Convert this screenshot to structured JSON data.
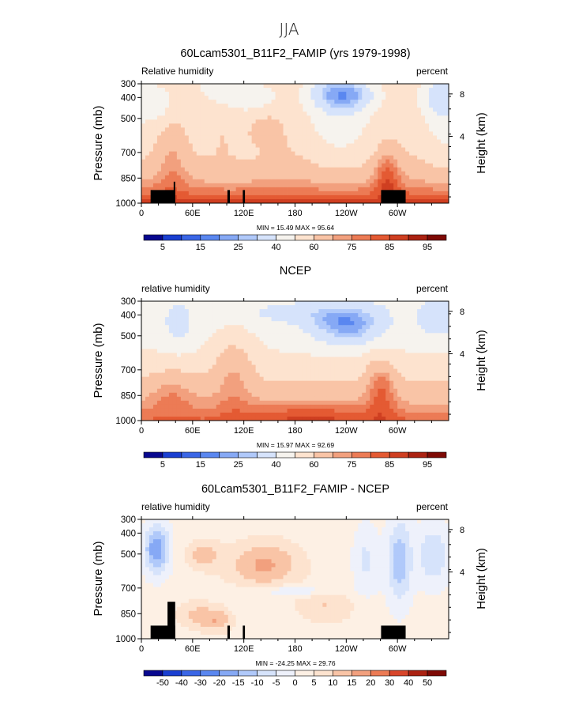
{
  "figure": {
    "suptitle": "JJA"
  },
  "chart_data": [
    {
      "type": "heatmap",
      "title": "60Lcam5301_B11F2_FAMIP (yrs 1979-1998)",
      "left_label": "Relative humidity",
      "right_label": "percent",
      "ylabel": "Pressure (mb)",
      "ylabel_right": "Height (km)",
      "x_ticks": [
        "0",
        "60E",
        "120E",
        "180",
        "120W",
        "60W"
      ],
      "y_ticks": [
        "300",
        "400",
        "500",
        "700",
        "850",
        "1000"
      ],
      "y_ticks_right": [
        "8",
        "4"
      ],
      "stats": "MIN =   15.49   MAX =   95.64",
      "colorbar_labels": [
        "5",
        "15",
        "25",
        "40",
        "60",
        "75",
        "85",
        "95"
      ],
      "levels": [
        5,
        10,
        15,
        20,
        25,
        30,
        40,
        50,
        60,
        70,
        75,
        80,
        85,
        90,
        95
      ],
      "colors": [
        "#08088f",
        "#1a3fd1",
        "#3a66e6",
        "#5a87f0",
        "#86a9f5",
        "#b0c9fa",
        "#d6e3fb",
        "#f6f3ee",
        "#fde3cf",
        "#f9c4a6",
        "#f2a07e",
        "#ec7b55",
        "#e45a33",
        "#cf3f21",
        "#ab2212",
        "#7e0a05"
      ],
      "landmask": [
        [
          0.03,
          0.11,
          0.0
        ],
        [
          0.105,
          0.11,
          0.07
        ],
        [
          0.28,
          0.288,
          0.0
        ],
        [
          0.33,
          0.337,
          0.0
        ],
        [
          0.78,
          0.86,
          0.0
        ]
      ]
    },
    {
      "type": "heatmap",
      "title": "NCEP",
      "left_label": "relative humidity",
      "right_label": "percent",
      "ylabel": "Pressure (mb)",
      "ylabel_right": "Height (km)",
      "x_ticks": [
        "0",
        "60E",
        "120E",
        "180",
        "120W",
        "60W"
      ],
      "y_ticks": [
        "300",
        "400",
        "500",
        "700",
        "850",
        "1000"
      ],
      "y_ticks_right": [
        "8",
        "4"
      ],
      "stats": "MIN =   15.97   MAX =   92.69",
      "colorbar_labels": [
        "5",
        "15",
        "25",
        "40",
        "60",
        "75",
        "85",
        "95"
      ],
      "levels": [
        5,
        10,
        15,
        20,
        25,
        30,
        40,
        50,
        60,
        70,
        75,
        80,
        85,
        90,
        95
      ],
      "colors": [
        "#08088f",
        "#1a3fd1",
        "#3a66e6",
        "#5a87f0",
        "#86a9f5",
        "#b0c9fa",
        "#d6e3fb",
        "#f6f3ee",
        "#fde3cf",
        "#f9c4a6",
        "#f2a07e",
        "#ec7b55",
        "#e45a33",
        "#cf3f21",
        "#ab2212",
        "#7e0a05"
      ],
      "landmask": []
    },
    {
      "type": "heatmap",
      "title": "60Lcam5301_B11F2_FAMIP - NCEP",
      "left_label": "relative humidity",
      "right_label": "percent",
      "ylabel": "Pressure (mb)",
      "ylabel_right": "Height (km)",
      "x_ticks": [
        "0",
        "60E",
        "120E",
        "180",
        "120W",
        "60W"
      ],
      "y_ticks": [
        "300",
        "400",
        "500",
        "700",
        "850",
        "1000"
      ],
      "y_ticks_right": [
        "8",
        "4"
      ],
      "stats": "MIN =  -24.25   MAX =   29.76",
      "colorbar_labels": [
        "-50",
        "-40",
        "-30",
        "-20",
        "-15",
        "-10",
        "-5",
        "0",
        "5",
        "10",
        "15",
        "20",
        "30",
        "40",
        "50"
      ],
      "levels": [
        -50,
        -40,
        -30,
        -20,
        -15,
        -10,
        -5,
        0,
        5,
        10,
        15,
        20,
        30,
        40,
        50
      ],
      "colors": [
        "#08088f",
        "#1a3fd1",
        "#3a66e6",
        "#5a87f0",
        "#86a9f5",
        "#b0c9fa",
        "#d6e3fb",
        "#eef1fb",
        "#fdf0e4",
        "#fde3cf",
        "#f9c4a6",
        "#f2a07e",
        "#ec7b55",
        "#d8452a",
        "#ab2212",
        "#7e0a05"
      ],
      "landmask": [
        [
          0.03,
          0.11,
          0.0
        ],
        [
          0.085,
          0.11,
          0.2
        ],
        [
          0.28,
          0.288,
          0.0
        ],
        [
          0.33,
          0.337,
          0.0
        ],
        [
          0.78,
          0.86,
          0.0
        ]
      ]
    }
  ]
}
